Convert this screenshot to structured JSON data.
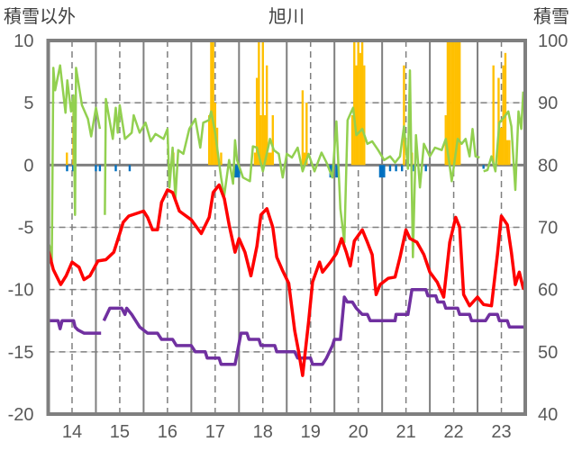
{
  "chart_data": {
    "type": "line",
    "title": "旭川",
    "ylabel_left": "積雪以外",
    "ylabel_right": "積雪",
    "x_unit": "hours from start of day 14",
    "xlim": [
      0,
      240
    ],
    "ylim_left": [
      -20,
      10
    ],
    "ylim_right": [
      40,
      100
    ],
    "yticks_left": [
      10,
      5,
      0,
      -5,
      -10,
      -15,
      -20
    ],
    "yticks_right": [
      100,
      90,
      80,
      70,
      60,
      50,
      40
    ],
    "xtick_labels": [
      "14",
      "15",
      "16",
      "17",
      "18",
      "19",
      "20",
      "21",
      "22",
      "23"
    ],
    "grid": true,
    "colors": {
      "temperature": "#ff0000",
      "snow_depth": "#7030a0",
      "green": "#92d050",
      "precip": "#ffc000",
      "negative": "#0070c0",
      "frame": "#7f7f7f"
    },
    "series": [
      {
        "name": "temperature",
        "axis": "left",
        "x": [
          0,
          2.6,
          6.3,
          9,
          12,
          15.5,
          18,
          21,
          25,
          29,
          33,
          37,
          37.7,
          40.5,
          48,
          50,
          52.5,
          55,
          57,
          60,
          62.6,
          66,
          72,
          77,
          81,
          83,
          86,
          88.6,
          91,
          94,
          96,
          99,
          102,
          105,
          107,
          110,
          113,
          115,
          118,
          121,
          124,
          126,
          128,
          131,
          133,
          136.5,
          138,
          142,
          145,
          147.6,
          150,
          152,
          154,
          158,
          160.6,
          163,
          165,
          167,
          171,
          174.5,
          177,
          180,
          182,
          185.5,
          189,
          192,
          195.7,
          199,
          202,
          205,
          207,
          209,
          212,
          216,
          219,
          223,
          226,
          228,
          231,
          233,
          235,
          237,
          239,
          240
        ],
        "y": [
          -6.8,
          -8.4,
          -9.6,
          -8.9,
          -7.8,
          -8.2,
          -9.2,
          -8.9,
          -7.7,
          -7.6,
          -7.0,
          -5.0,
          -4.6,
          -4.1,
          -3.7,
          -4.2,
          -5.2,
          -5.2,
          -3.0,
          -2.0,
          -2.2,
          -3.7,
          -4.4,
          -5.5,
          -4.2,
          -2.2,
          -1.6,
          -2.7,
          -4.8,
          -7.0,
          -5.9,
          -7.0,
          -8.9,
          -6.5,
          -4.0,
          -3.5,
          -5.0,
          -7.4,
          -8.5,
          -9.5,
          -13.3,
          -15.0,
          -16.9,
          -12.6,
          -9.4,
          -7.8,
          -8.6,
          -7.8,
          -7.1,
          -5.9,
          -7.0,
          -8.1,
          -6.1,
          -5.2,
          -6.2,
          -7.2,
          -10.4,
          -9.6,
          -9.1,
          -9.0,
          -7.4,
          -5.2,
          -5.9,
          -6.2,
          -7.2,
          -8.6,
          -9.4,
          -10.6,
          -6.2,
          -4.2,
          -5.0,
          -10.4,
          -11.3,
          -10.6,
          -11.2,
          -11.3,
          -7.2,
          -4.1,
          -4.8,
          -7.0,
          -9.6,
          -8.6,
          -9.9,
          -10.0
        ]
      },
      {
        "name": "snow_depth",
        "axis": "right",
        "segments": [
          {
            "x": [
              0,
              5,
              6,
              7,
              12.8,
              13.5,
              15,
              18,
              26.6
            ],
            "y": [
              55,
              55,
              53.7,
              55,
              55,
              54,
              53.5,
              53,
              53
            ]
          },
          {
            "x": [
              28,
              31,
              37,
              38.6,
              39.5,
              42,
              46,
              50,
              55,
              57,
              62.6,
              64.5,
              72,
              74,
              79,
              80,
              86,
              87,
              94,
              97,
              100,
              101,
              106,
              107,
              114,
              115,
              124,
              125.5,
              132,
              133,
              138,
              140,
              143,
              144,
              147,
              149,
              150.5,
              153,
              155,
              158,
              160.6,
              162,
              174.5,
              175,
              181,
              183,
              190,
              191,
              195,
              196,
              199,
              200,
              206,
              207,
              212,
              213,
              220,
              222,
              226,
              227,
              231,
              232,
              240
            ],
            "y": [
              55,
              57,
              57,
              56,
              57,
              56,
              54,
              53,
              53,
              52,
              52,
              51,
              51,
              50,
              50,
              49,
              49,
              48,
              48,
              53,
              53,
              52,
              52,
              51,
              51,
              50,
              50,
              49,
              49,
              48,
              48,
              49,
              51,
              52,
              52,
              58.8,
              58,
              58,
              57,
              56,
              56,
              55,
              55,
              56,
              56,
              60,
              60,
              59,
              59,
              58,
              58,
              57,
              57,
              56,
              56,
              55,
              55,
              56,
              56,
              55,
              55,
              54,
              54
            ]
          }
        ]
      },
      {
        "name": "green",
        "axis": "left",
        "segments": [
          {
            "x": [
              0,
              0.7,
              1.8,
              2.6,
              3.5,
              6,
              8.7,
              9.6,
              11.5,
              12.7,
              13.5,
              14,
              17,
              20,
              21.6,
              24,
              26
            ],
            "y": [
              -6.2,
              -6.5,
              -7.7,
              7.8,
              6,
              8,
              4.2,
              6.8,
              4.3,
              5.6,
              -4,
              7.8,
              4.8,
              3.7,
              2.3,
              4.6,
              2.9
            ]
          },
          {
            "x": [
              28.5,
              29,
              32.5,
              34,
              35,
              36,
              38.6,
              42,
              43,
              46,
              49,
              51.6,
              54,
              58,
              60,
              61,
              62.6,
              64,
              65.4,
              68,
              71,
              74,
              76.5,
              78,
              80.8,
              82,
              84,
              87,
              88.5,
              91,
              93,
              94,
              95,
              98,
              101.5,
              103,
              105,
              108,
              111.6,
              113.5,
              116,
              118,
              120,
              122.6,
              125.5,
              128,
              131,
              134,
              137.5,
              140,
              143,
              145,
              147,
              149,
              150.6,
              153.4,
              155,
              158,
              160.6,
              163,
              166,
              169,
              172,
              174.5,
              177,
              179,
              181,
              182,
              183.5,
              185,
              187,
              189,
              192,
              194.6,
              198,
              200,
              201.6,
              203,
              206,
              208,
              210,
              212,
              213.5,
              215,
              217
            ],
            "y": [
              -4,
              5.3,
              2.1,
              4.6,
              2.6,
              4.8,
              2.1,
              2.6,
              4,
              2.6,
              3.4,
              1.9,
              2.5,
              2.1,
              2.9,
              -1.8,
              1.4,
              -2.7,
              1.2,
              0.9,
              2.9,
              3.7,
              1.4,
              3.4,
              3.6,
              4.3,
              2.6,
              -1,
              -2.5,
              0.4,
              -1.5,
              2,
              0.4,
              -1,
              -1.3,
              1.5,
              1.4,
              -0.5,
              2.1,
              1.2,
              0.9,
              -1,
              0.9,
              0.6,
              1.4,
              -0.5,
              0.9,
              -0.5,
              1,
              0.2,
              -1,
              3.5,
              -3.5,
              -6.2,
              3.6,
              4.6,
              2.4,
              2.9,
              1.7,
              1.9,
              1.2,
              0.4,
              0.7,
              0.2,
              0.7,
              3.1,
              -0.3,
              7.6,
              -7.4,
              2.4,
              -1.8,
              1.7,
              0.7,
              1.4,
              1.2,
              2.1,
              0.4,
              -1.3,
              2.1,
              1.7,
              2.1,
              0.7,
              2.9,
              0.7,
              0.6
            ]
          },
          {
            "x": [
              219,
              221,
              223,
              225,
              227,
              229.6,
              231.5,
              233,
              235,
              236.6,
              238,
              239
            ],
            "y": [
              -0.5,
              -0.4,
              0.7,
              -0.5,
              3.4,
              3.9,
              4.3,
              3.1,
              -2,
              4.3,
              2.9,
              5.9
            ]
          }
        ]
      },
      {
        "name": "precip",
        "type": "bar",
        "axis": "left",
        "x": [
          9.4,
          12.7,
          63,
          81,
          82,
          83,
          84,
          85,
          87,
          104,
          105,
          106,
          107,
          108,
          109,
          110,
          111,
          112,
          113,
          128,
          129,
          130,
          153,
          154,
          155,
          156,
          157,
          158,
          159,
          179,
          183,
          200,
          201,
          202,
          203,
          204,
          205,
          206,
          207,
          224,
          226.6,
          227.5,
          228.5,
          229,
          230,
          231,
          232
        ],
        "y": [
          1,
          5.5,
          1,
          4,
          10,
          10,
          5,
          3,
          1,
          1,
          7,
          10,
          4,
          10,
          4,
          8,
          1,
          1,
          4,
          6,
          1,
          5,
          4,
          10,
          8,
          10,
          9,
          10,
          8,
          8,
          1,
          4,
          10,
          10,
          10,
          10,
          10,
          10,
          10,
          8,
          7,
          3,
          3,
          8,
          9,
          2,
          2
        ]
      },
      {
        "name": "negative",
        "type": "bar",
        "axis": "left",
        "x": [
          9.5,
          12.5,
          24,
          26,
          34,
          41,
          94,
          95,
          96,
          142,
          143,
          145,
          146,
          167,
          168,
          169,
          172,
          175,
          178,
          184,
          190,
          219
        ],
        "y": [
          -0.5,
          -0.5,
          -0.5,
          -0.5,
          -0.5,
          -0.5,
          -1,
          -1,
          -1,
          -1,
          -1,
          -1,
          -1,
          -1,
          -1,
          -1,
          -0.5,
          -0.5,
          -0.5,
          -0.5,
          -0.5,
          -0.3
        ]
      }
    ]
  }
}
